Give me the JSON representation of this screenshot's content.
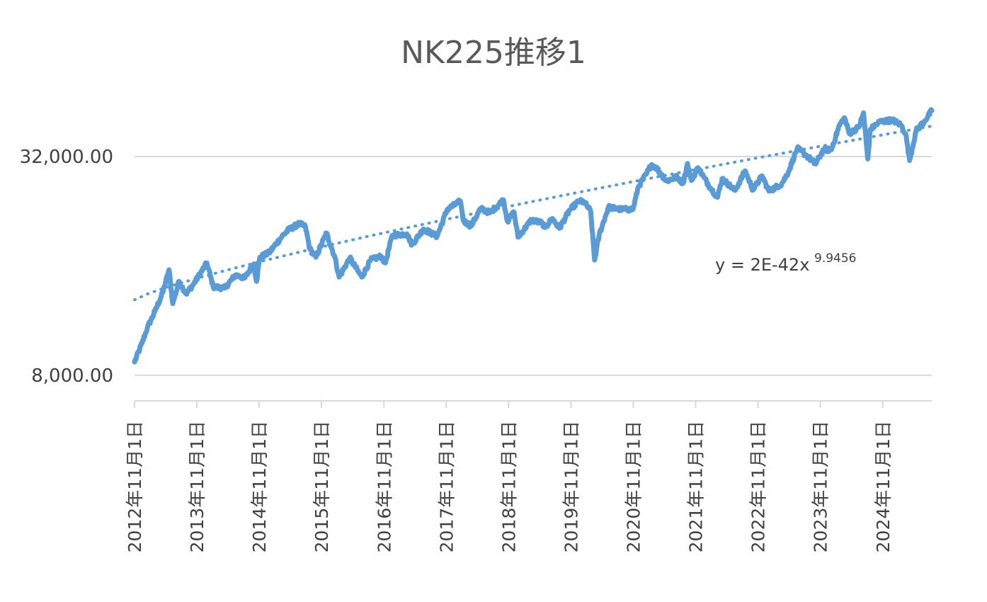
{
  "chart_data": {
    "type": "line",
    "title": "NK225推移1",
    "xlabel": "",
    "ylabel": "",
    "y_scale": "log",
    "ylim": [
      6800,
      44000
    ],
    "y_ticks": [
      {
        "value": 8000,
        "label": "8,000.00"
      },
      {
        "value": 32000,
        "label": "32,000.00"
      }
    ],
    "x_range": [
      "2012-11-01",
      "2025-08-15"
    ],
    "x_ticks": [
      {
        "date": "2012-11-01",
        "label": "2012年11月1日"
      },
      {
        "date": "2013-11-01",
        "label": "2013年11月1日"
      },
      {
        "date": "2014-11-01",
        "label": "2014年11月1日"
      },
      {
        "date": "2015-11-01",
        "label": "2015年11月1日"
      },
      {
        "date": "2016-11-01",
        "label": "2016年11月1日"
      },
      {
        "date": "2017-11-01",
        "label": "2017年11月1日"
      },
      {
        "date": "2018-11-01",
        "label": "2018年11月1日"
      },
      {
        "date": "2019-11-01",
        "label": "2019年11月1日"
      },
      {
        "date": "2020-11-01",
        "label": "2020年11月1日"
      },
      {
        "date": "2021-11-01",
        "label": "2021年11月1日"
      },
      {
        "date": "2022-11-01",
        "label": "2022年11月1日"
      },
      {
        "date": "2023-11-01",
        "label": "2023年11月1日"
      },
      {
        "date": "2024-11-01",
        "label": "2024年11月1日"
      }
    ],
    "grid": true,
    "series": [
      {
        "color": "#5b9bd5",
        "points": [
          [
            "2012-11-01",
            8700
          ],
          [
            "2012-12-15",
            9800
          ],
          [
            "2013-01-15",
            10800
          ],
          [
            "2013-03-01",
            12000
          ],
          [
            "2013-04-15",
            13500
          ],
          [
            "2013-05-22",
            15600
          ],
          [
            "2013-06-13",
            12600
          ],
          [
            "2013-07-20",
            14500
          ],
          [
            "2013-08-30",
            13400
          ],
          [
            "2013-10-15",
            14300
          ],
          [
            "2013-12-30",
            16300
          ],
          [
            "2014-02-05",
            14000
          ],
          [
            "2014-04-14",
            13900
          ],
          [
            "2014-06-15",
            15100
          ],
          [
            "2014-08-08",
            14800
          ],
          [
            "2014-09-30",
            16200
          ],
          [
            "2014-10-17",
            14500
          ],
          [
            "2014-11-05",
            16900
          ],
          [
            "2014-12-30",
            17400
          ],
          [
            "2015-03-15",
            19300
          ],
          [
            "2015-04-22",
            20100
          ],
          [
            "2015-06-24",
            20900
          ],
          [
            "2015-07-30",
            20500
          ],
          [
            "2015-08-25",
            17800
          ],
          [
            "2015-09-29",
            16900
          ],
          [
            "2015-11-30",
            19700
          ],
          [
            "2016-01-20",
            16800
          ],
          [
            "2016-02-12",
            14900
          ],
          [
            "2016-04-15",
            16800
          ],
          [
            "2016-06-24",
            14900
          ],
          [
            "2016-08-15",
            16600
          ],
          [
            "2016-10-15",
            17000
          ],
          [
            "2016-11-09",
            16300
          ],
          [
            "2016-12-20",
            19400
          ],
          [
            "2017-03-15",
            19600
          ],
          [
            "2017-04-14",
            18300
          ],
          [
            "2017-06-20",
            20200
          ],
          [
            "2017-09-08",
            19300
          ],
          [
            "2017-11-07",
            22900
          ],
          [
            "2018-01-23",
            24100
          ],
          [
            "2018-02-09",
            21300
          ],
          [
            "2018-03-26",
            20600
          ],
          [
            "2018-05-21",
            23000
          ],
          [
            "2018-07-15",
            22400
          ],
          [
            "2018-10-02",
            24300
          ],
          [
            "2018-10-26",
            21200
          ],
          [
            "2018-12-03",
            22500
          ],
          [
            "2018-12-26",
            19200
          ],
          [
            "2019-03-15",
            21400
          ],
          [
            "2019-05-15",
            21000
          ],
          [
            "2019-06-03",
            20400
          ],
          [
            "2019-07-15",
            21600
          ],
          [
            "2019-08-26",
            20300
          ],
          [
            "2019-10-25",
            22800
          ],
          [
            "2019-12-17",
            24100
          ],
          [
            "2020-01-17",
            24000
          ],
          [
            "2020-02-25",
            22600
          ],
          [
            "2020-03-19",
            16600
          ],
          [
            "2020-04-15",
            19500
          ],
          [
            "2020-06-08",
            23200
          ],
          [
            "2020-08-15",
            22900
          ],
          [
            "2020-10-30",
            22900
          ],
          [
            "2020-11-30",
            26400
          ],
          [
            "2021-01-15",
            28600
          ],
          [
            "2021-02-16",
            30400
          ],
          [
            "2021-03-15",
            29800
          ],
          [
            "2021-05-13",
            27400
          ],
          [
            "2021-07-15",
            28100
          ],
          [
            "2021-08-20",
            27000
          ],
          [
            "2021-09-14",
            30600
          ],
          [
            "2021-10-06",
            27500
          ],
          [
            "2021-11-15",
            29800
          ],
          [
            "2021-12-20",
            28000
          ],
          [
            "2022-01-27",
            26200
          ],
          [
            "2022-03-09",
            24700
          ],
          [
            "2022-04-05",
            27800
          ],
          [
            "2022-06-20",
            25800
          ],
          [
            "2022-08-17",
            29200
          ],
          [
            "2022-10-03",
            25900
          ],
          [
            "2022-11-25",
            28300
          ],
          [
            "2023-01-04",
            25700
          ],
          [
            "2023-03-20",
            26900
          ],
          [
            "2023-04-28",
            29000
          ],
          [
            "2023-06-19",
            33700
          ],
          [
            "2023-08-15",
            32100
          ],
          [
            "2023-10-04",
            30500
          ],
          [
            "2023-11-20",
            33400
          ],
          [
            "2024-01-05",
            33400
          ],
          [
            "2024-02-22",
            39100
          ],
          [
            "2024-03-22",
            40900
          ],
          [
            "2024-04-19",
            37000
          ],
          [
            "2024-06-15",
            38600
          ],
          [
            "2024-07-11",
            42200
          ],
          [
            "2024-08-05",
            31500
          ],
          [
            "2024-08-20",
            38000
          ],
          [
            "2024-10-15",
            39900
          ],
          [
            "2024-12-27",
            40300
          ],
          [
            "2025-02-15",
            39100
          ],
          [
            "2025-03-15",
            37000
          ],
          [
            "2025-04-07",
            31200
          ],
          [
            "2025-05-15",
            37700
          ],
          [
            "2025-07-01",
            39900
          ],
          [
            "2025-08-15",
            42800
          ]
        ]
      }
    ],
    "trendline": {
      "type": "power",
      "color": "#5b9bd5",
      "style": "dotted",
      "equation": "y = 2E-42x",
      "exponent": "9.9456",
      "start": [
        "2012-11-01",
        12900
      ],
      "end": [
        "2025-08-15",
        38800
      ]
    }
  }
}
